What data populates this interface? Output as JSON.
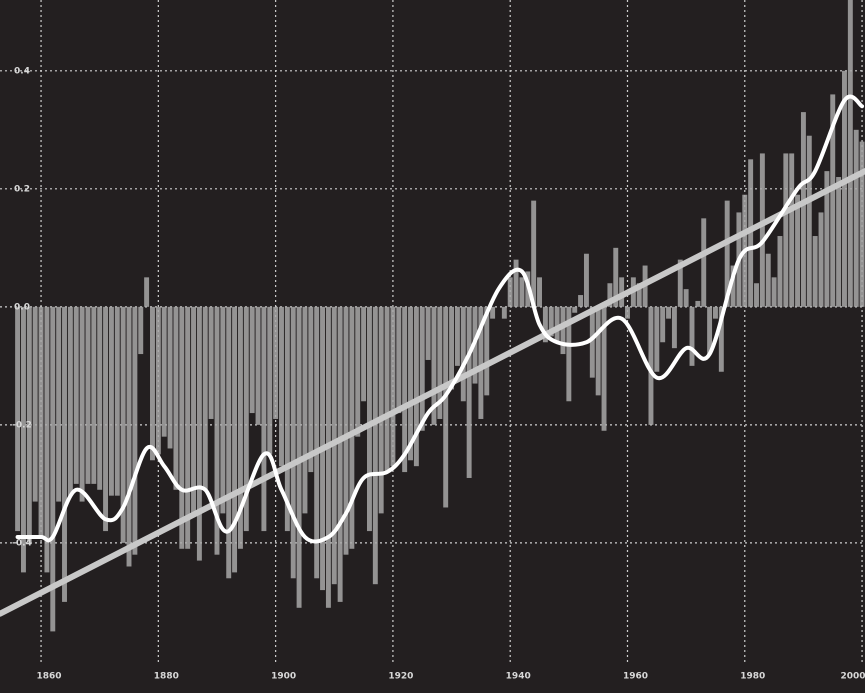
{
  "chart_data": {
    "type": "bar",
    "color": "#a8a8a8",
    "background": "#231f20",
    "grid": true,
    "xlim": [
      1853,
      2000.5
    ],
    "ylim": [
      -0.59,
      0.52
    ],
    "xticks": [
      1860,
      1880,
      1900,
      1920,
      1940,
      1960,
      1980,
      2000
    ],
    "yticks": [
      -0.4,
      -0.2,
      {
        "value": 0,
        "label": "0.0"
      },
      0.2,
      0.4
    ],
    "x": [
      1856,
      1857,
      1858,
      1859,
      1860,
      1861,
      1862,
      1863,
      1864,
      1865,
      1866,
      1867,
      1868,
      1869,
      1870,
      1871,
      1872,
      1873,
      1874,
      1875,
      1876,
      1877,
      1878,
      1879,
      1880,
      1881,
      1882,
      1883,
      1884,
      1885,
      1886,
      1887,
      1888,
      1889,
      1890,
      1891,
      1892,
      1893,
      1894,
      1895,
      1896,
      1897,
      1898,
      1899,
      1900,
      1901,
      1902,
      1903,
      1904,
      1905,
      1906,
      1907,
      1908,
      1909,
      1910,
      1911,
      1912,
      1913,
      1914,
      1915,
      1916,
      1917,
      1918,
      1919,
      1920,
      1921,
      1922,
      1923,
      1924,
      1925,
      1926,
      1927,
      1928,
      1929,
      1930,
      1931,
      1932,
      1933,
      1934,
      1935,
      1936,
      1937,
      1938,
      1939,
      1940,
      1941,
      1942,
      1943,
      1944,
      1945,
      1946,
      1947,
      1948,
      1949,
      1950,
      1951,
      1952,
      1953,
      1954,
      1955,
      1956,
      1957,
      1958,
      1959,
      1960,
      1961,
      1962,
      1963,
      1964,
      1965,
      1966,
      1967,
      1968,
      1969,
      1970,
      1971,
      1972,
      1973,
      1974,
      1975,
      1976,
      1977,
      1978,
      1979,
      1980,
      1981,
      1982,
      1983,
      1984,
      1985,
      1986,
      1987,
      1988,
      1989,
      1990,
      1991,
      1992,
      1993,
      1994,
      1995,
      1996,
      1997,
      1998,
      1999,
      2000
    ],
    "values": [
      -0.38,
      -0.45,
      -0.4,
      -0.33,
      -0.39,
      -0.45,
      -0.55,
      -0.33,
      -0.5,
      -0.32,
      -0.3,
      -0.33,
      -0.3,
      -0.3,
      -0.31,
      -0.38,
      -0.32,
      -0.32,
      -0.4,
      -0.44,
      -0.42,
      -0.08,
      0.05,
      -0.26,
      -0.25,
      -0.22,
      -0.24,
      -0.31,
      -0.41,
      -0.41,
      -0.35,
      -0.43,
      -0.31,
      -0.19,
      -0.42,
      -0.35,
      -0.46,
      -0.45,
      -0.41,
      -0.38,
      -0.18,
      -0.2,
      -0.38,
      -0.25,
      -0.19,
      -0.27,
      -0.38,
      -0.46,
      -0.51,
      -0.35,
      -0.28,
      -0.46,
      -0.48,
      -0.51,
      -0.47,
      -0.5,
      -0.42,
      -0.41,
      -0.22,
      -0.16,
      -0.38,
      -0.47,
      -0.35,
      -0.28,
      -0.27,
      -0.18,
      -0.28,
      -0.26,
      -0.27,
      -0.21,
      -0.09,
      -0.2,
      -0.19,
      -0.34,
      -0.14,
      -0.1,
      -0.16,
      -0.29,
      -0.13,
      -0.19,
      -0.15,
      -0.02,
      0.0,
      -0.02,
      0.05,
      0.08,
      0.05,
      0.06,
      0.18,
      0.05,
      -0.06,
      -0.05,
      -0.06,
      -0.08,
      -0.16,
      -0.01,
      0.02,
      0.09,
      -0.12,
      -0.15,
      -0.21,
      0.04,
      0.1,
      0.05,
      -0.02,
      0.05,
      0.04,
      0.07,
      -0.2,
      -0.11,
      -0.06,
      -0.02,
      -0.07,
      0.08,
      0.03,
      -0.1,
      0.01,
      0.15,
      -0.08,
      -0.02,
      -0.11,
      0.18,
      0.07,
      0.16,
      0.19,
      0.25,
      0.04,
      0.26,
      0.09,
      0.05,
      0.12,
      0.26,
      0.26,
      0.19,
      0.33,
      0.29,
      0.12,
      0.16,
      0.23,
      0.36,
      0.22,
      0.4,
      0.55,
      0.3,
      0.28
    ],
    "lines": [
      {
        "color": "#c8c8c8",
        "x": [
          1853,
          2000.5
        ],
        "values": [
          -0.52,
          0.23
        ]
      },
      {
        "color": "#ffffff",
        "x": [
          1856,
          1860,
          1862,
          1866,
          1871,
          1874,
          1878,
          1881,
          1884,
          1888,
          1892,
          1898,
          1901,
          1905,
          1909,
          1912,
          1915,
          1919,
          1922,
          1926,
          1929,
          1933,
          1938,
          1942,
          1945,
          1948,
          1953,
          1959,
          1965,
          1970,
          1974,
          1979,
          1983,
          1989,
          1992,
          1997,
          2000
        ],
        "values": [
          -0.39,
          -0.39,
          -0.39,
          -0.31,
          -0.36,
          -0.34,
          -0.24,
          -0.27,
          -0.31,
          -0.31,
          -0.38,
          -0.25,
          -0.31,
          -0.39,
          -0.39,
          -0.35,
          -0.29,
          -0.28,
          -0.25,
          -0.18,
          -0.15,
          -0.08,
          0.03,
          0.06,
          -0.03,
          -0.06,
          -0.06,
          -0.02,
          -0.12,
          -0.07,
          -0.08,
          0.08,
          0.11,
          0.2,
          0.23,
          0.35,
          0.34
        ]
      }
    ]
  }
}
